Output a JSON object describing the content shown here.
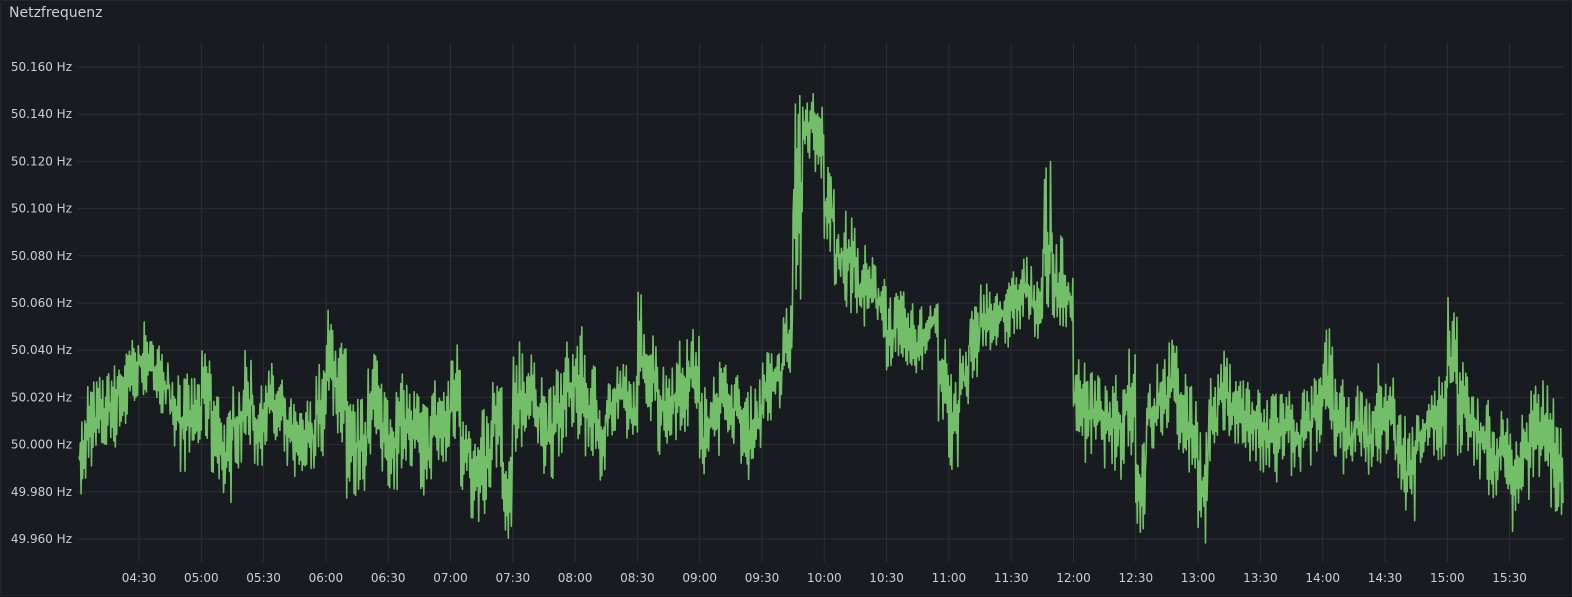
{
  "panel": {
    "title": "Netzfrequenz"
  },
  "colors": {
    "background": "#181b1f",
    "series": "#73bf69",
    "grid": "#2c2e33",
    "text": "#ccccdc"
  },
  "chart_data": {
    "type": "line",
    "title": "Netzfrequenz",
    "xlabel": "",
    "ylabel": "",
    "unit": "Hz",
    "grid": true,
    "legend": "none",
    "xlim": [
      "04:01",
      "15:56"
    ],
    "ylim": [
      49.95,
      50.17
    ],
    "y_ticks": [
      "50.160 Hz",
      "50.140 Hz",
      "50.120 Hz",
      "50.100 Hz",
      "50.080 Hz",
      "50.060 Hz",
      "50.040 Hz",
      "50.020 Hz",
      "50.000 Hz",
      "49.980 Hz",
      "49.960 Hz"
    ],
    "y_tick_values": [
      50.16,
      50.14,
      50.12,
      50.1,
      50.08,
      50.06,
      50.04,
      50.02,
      50.0,
      49.98,
      49.96
    ],
    "x_ticks": [
      "04:30",
      "05:00",
      "05:30",
      "06:00",
      "06:30",
      "07:00",
      "07:30",
      "08:00",
      "08:30",
      "09:00",
      "09:30",
      "10:00",
      "10:30",
      "11:00",
      "11:30",
      "12:00",
      "12:30",
      "13:00",
      "13:30",
      "14:00",
      "14:30",
      "15:00",
      "15:30"
    ],
    "series": [
      {
        "color": "#73bf69",
        "bucket_minutes": 5,
        "columns": [
          "time",
          "min",
          "max"
        ],
        "points": [
          [
            "04:00",
            49.975,
            50.015
          ],
          [
            "04:05",
            49.99,
            50.028
          ],
          [
            "04:10",
            49.995,
            50.03
          ],
          [
            "04:15",
            49.998,
            50.035
          ],
          [
            "04:20",
            50.005,
            50.04
          ],
          [
            "04:25",
            50.015,
            50.045
          ],
          [
            "04:30",
            50.02,
            50.052
          ],
          [
            "04:35",
            50.02,
            50.045
          ],
          [
            "04:40",
            50.01,
            50.04
          ],
          [
            "04:45",
            49.995,
            50.035
          ],
          [
            "04:50",
            49.988,
            50.03
          ],
          [
            "04:55",
            49.995,
            50.03
          ],
          [
            "05:00",
            50.0,
            50.04
          ],
          [
            "05:05",
            49.985,
            50.025
          ],
          [
            "05:10",
            49.975,
            50.015
          ],
          [
            "05:15",
            49.99,
            50.03
          ],
          [
            "05:20",
            49.995,
            50.04
          ],
          [
            "05:25",
            49.99,
            50.025
          ],
          [
            "05:30",
            50.0,
            50.035
          ],
          [
            "05:35",
            49.995,
            50.03
          ],
          [
            "05:40",
            49.99,
            50.02
          ],
          [
            "05:45",
            49.985,
            50.015
          ],
          [
            "05:50",
            49.988,
            50.02
          ],
          [
            "05:55",
            49.995,
            50.035
          ],
          [
            "06:00",
            50.01,
            50.058
          ],
          [
            "06:05",
            50.0,
            50.045
          ],
          [
            "06:10",
            49.975,
            50.02
          ],
          [
            "06:15",
            49.98,
            50.02
          ],
          [
            "06:20",
            49.995,
            50.045
          ],
          [
            "06:25",
            49.985,
            50.03
          ],
          [
            "06:30",
            49.98,
            50.025
          ],
          [
            "06:35",
            49.99,
            50.03
          ],
          [
            "06:40",
            49.985,
            50.025
          ],
          [
            "06:45",
            49.975,
            50.02
          ],
          [
            "06:50",
            49.985,
            50.03
          ],
          [
            "06:55",
            49.988,
            50.028
          ],
          [
            "07:00",
            50.0,
            50.045
          ],
          [
            "07:05",
            49.98,
            50.02
          ],
          [
            "07:10",
            49.965,
            50.005
          ],
          [
            "07:15",
            49.97,
            50.015
          ],
          [
            "07:20",
            49.99,
            50.03
          ],
          [
            "07:25",
            49.96,
            49.995
          ],
          [
            "07:30",
            49.99,
            50.05
          ],
          [
            "07:35",
            50.0,
            50.04
          ],
          [
            "07:40",
            49.995,
            50.035
          ],
          [
            "07:45",
            49.985,
            50.025
          ],
          [
            "07:50",
            49.995,
            50.035
          ],
          [
            "07:55",
            50.0,
            50.045
          ],
          [
            "08:00",
            50.0,
            50.05
          ],
          [
            "08:05",
            49.995,
            50.035
          ],
          [
            "08:10",
            49.985,
            50.025
          ],
          [
            "08:15",
            50.0,
            50.03
          ],
          [
            "08:20",
            50.005,
            50.035
          ],
          [
            "08:25",
            50.0,
            50.03
          ],
          [
            "08:30",
            50.005,
            50.066
          ],
          [
            "08:35",
            50.01,
            50.05
          ],
          [
            "08:40",
            49.995,
            50.035
          ],
          [
            "08:45",
            50.0,
            50.04
          ],
          [
            "08:50",
            50.005,
            50.045
          ],
          [
            "08:55",
            50.01,
            50.05
          ],
          [
            "09:00",
            49.98,
            50.025
          ],
          [
            "09:05",
            49.995,
            50.04
          ],
          [
            "09:10",
            50.005,
            50.035
          ],
          [
            "09:15",
            50.0,
            50.03
          ],
          [
            "09:20",
            49.985,
            50.025
          ],
          [
            "09:25",
            49.99,
            50.03
          ],
          [
            "09:30",
            50.01,
            50.04
          ],
          [
            "09:35",
            50.015,
            50.04
          ],
          [
            "09:40",
            50.03,
            50.06
          ],
          [
            "09:45",
            50.06,
            50.15
          ],
          [
            "09:50",
            50.12,
            50.15
          ],
          [
            "09:55",
            50.11,
            50.145
          ],
          [
            "10:00",
            50.08,
            50.12
          ],
          [
            "10:05",
            50.065,
            50.095
          ],
          [
            "10:10",
            50.055,
            50.1
          ],
          [
            "10:15",
            50.05,
            50.085
          ],
          [
            "10:20",
            50.05,
            50.08
          ],
          [
            "10:25",
            50.045,
            50.075
          ],
          [
            "10:30",
            50.03,
            50.065
          ],
          [
            "10:35",
            50.035,
            50.065
          ],
          [
            "10:40",
            50.025,
            50.06
          ],
          [
            "10:45",
            50.03,
            50.06
          ],
          [
            "10:50",
            50.04,
            50.065
          ],
          [
            "10:55",
            50.01,
            50.045
          ],
          [
            "11:00",
            49.985,
            50.03
          ],
          [
            "11:05",
            50.01,
            50.045
          ],
          [
            "11:10",
            50.025,
            50.06
          ],
          [
            "11:15",
            50.04,
            50.07
          ],
          [
            "11:20",
            50.04,
            50.065
          ],
          [
            "11:25",
            50.04,
            50.07
          ],
          [
            "11:30",
            50.045,
            50.075
          ],
          [
            "11:35",
            50.05,
            50.08
          ],
          [
            "11:40",
            50.045,
            50.075
          ],
          [
            "11:45",
            50.045,
            50.12
          ],
          [
            "11:50",
            50.045,
            50.09
          ],
          [
            "11:55",
            50.05,
            50.075
          ],
          [
            "12:00",
            50.0,
            50.04
          ],
          [
            "12:05",
            49.99,
            50.035
          ],
          [
            "12:10",
            49.995,
            50.03
          ],
          [
            "12:15",
            49.99,
            50.025
          ],
          [
            "12:20",
            49.985,
            50.03
          ],
          [
            "12:25",
            49.995,
            50.045
          ],
          [
            "12:30",
            49.96,
            50.01
          ],
          [
            "12:35",
            49.995,
            50.03
          ],
          [
            "12:40",
            50.0,
            50.04
          ],
          [
            "12:45",
            50.005,
            50.045
          ],
          [
            "12:50",
            49.995,
            50.035
          ],
          [
            "12:55",
            49.985,
            50.025
          ],
          [
            "13:00",
            49.958,
            50.01
          ],
          [
            "13:05",
            49.99,
            50.03
          ],
          [
            "13:10",
            50.0,
            50.04
          ],
          [
            "13:15",
            50.0,
            50.035
          ],
          [
            "13:20",
            49.995,
            50.03
          ],
          [
            "13:25",
            49.99,
            50.025
          ],
          [
            "13:30",
            49.985,
            50.02
          ],
          [
            "13:35",
            49.98,
            50.03
          ],
          [
            "13:40",
            49.99,
            50.025
          ],
          [
            "13:45",
            49.985,
            50.02
          ],
          [
            "13:50",
            49.99,
            50.025
          ],
          [
            "13:55",
            49.995,
            50.03
          ],
          [
            "14:00",
            50.005,
            50.05
          ],
          [
            "14:05",
            49.995,
            50.03
          ],
          [
            "14:10",
            49.985,
            50.02
          ],
          [
            "14:15",
            49.99,
            50.025
          ],
          [
            "14:20",
            49.985,
            50.02
          ],
          [
            "14:25",
            49.99,
            50.035
          ],
          [
            "14:30",
            49.995,
            50.03
          ],
          [
            "14:35",
            49.98,
            50.015
          ],
          [
            "14:40",
            49.967,
            50.01
          ],
          [
            "14:45",
            49.99,
            50.02
          ],
          [
            "14:50",
            49.995,
            50.025
          ],
          [
            "14:55",
            49.99,
            50.03
          ],
          [
            "15:00",
            50.01,
            50.063
          ],
          [
            "15:05",
            49.995,
            50.035
          ],
          [
            "15:10",
            49.99,
            50.025
          ],
          [
            "15:15",
            49.985,
            50.02
          ],
          [
            "15:20",
            49.975,
            50.015
          ],
          [
            "15:25",
            49.98,
            50.015
          ],
          [
            "15:30",
            49.962,
            50.01
          ],
          [
            "15:35",
            49.975,
            50.015
          ],
          [
            "15:40",
            49.985,
            50.025
          ],
          [
            "15:45",
            49.99,
            50.03
          ],
          [
            "15:50",
            49.97,
            50.02
          ],
          [
            "15:55",
            49.965,
            50.01
          ]
        ]
      }
    ]
  }
}
